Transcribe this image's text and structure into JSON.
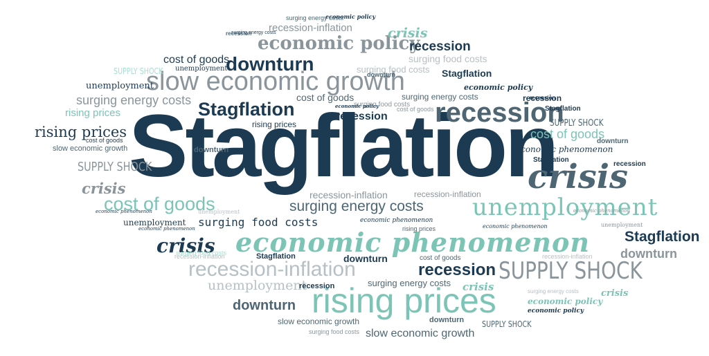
{
  "colors": {
    "navy": "#1c3a52",
    "slate": "#4e6673",
    "gray": "#8a959b",
    "teal": "#7cc4b6",
    "lightteal": "#a9dcd1",
    "lightgray": "#b7c0c4",
    "background": "#ffffff"
  },
  "words": [
    {
      "text": "Stagflation"
    },
    {
      "text": "slow economic growth"
    },
    {
      "text": "recession"
    },
    {
      "text": "crisis"
    },
    {
      "text": "unemployment"
    },
    {
      "text": "economic phenomenon"
    },
    {
      "text": "rising prices"
    },
    {
      "text": "SUPPLY SHOCK"
    },
    {
      "text": "recession-inflation"
    },
    {
      "text": "cost of goods"
    },
    {
      "text": "surging energy costs"
    },
    {
      "text": "surging food costs"
    },
    {
      "text": "downturn"
    },
    {
      "text": "economic policy"
    },
    {
      "text": "Stagflation"
    },
    {
      "text": "Stagflation"
    },
    {
      "text": "rising prices"
    },
    {
      "text": "crisis"
    },
    {
      "text": "downturn"
    },
    {
      "text": "recession"
    },
    {
      "text": "cost of goods"
    },
    {
      "text": "recession"
    },
    {
      "text": "downturn"
    },
    {
      "text": "recession-inflation"
    },
    {
      "text": "crisis"
    },
    {
      "text": "recession"
    },
    {
      "text": "crisis"
    },
    {
      "text": "surging food costs"
    },
    {
      "text": "surging energy costs"
    },
    {
      "text": "recession-inflation"
    },
    {
      "text": "economic policy"
    },
    {
      "text": "unemployment"
    },
    {
      "text": "cost of goods"
    },
    {
      "text": "SUPPLY SHOCK"
    },
    {
      "text": "rising prices"
    },
    {
      "text": "surging energy costs"
    },
    {
      "text": "rising prices"
    },
    {
      "text": "economic phenomenon"
    },
    {
      "text": "SUPPLY SHOCK"
    },
    {
      "text": "slow economic growth"
    },
    {
      "text": "cost of goods"
    },
    {
      "text": "unemployment"
    },
    {
      "text": "surging energy costs"
    },
    {
      "text": "surging food costs"
    },
    {
      "text": "SUPPLY SHOCK"
    },
    {
      "text": "Stagflation"
    },
    {
      "text": "recession"
    },
    {
      "text": "economic policy"
    },
    {
      "text": "Stagflation"
    },
    {
      "text": "recession"
    },
    {
      "text": "downturn"
    },
    {
      "text": "recession-inflation"
    },
    {
      "text": "recession-inflation"
    },
    {
      "text": "economic phenomenon"
    },
    {
      "text": "rising prices"
    },
    {
      "text": "economic phenomenon"
    },
    {
      "text": "economic phenomenon"
    },
    {
      "text": "unemployment"
    },
    {
      "text": "economic phenomenon"
    },
    {
      "text": "Stagflation"
    },
    {
      "text": "downturn"
    },
    {
      "text": "recession-inflation"
    },
    {
      "text": "cost of goods"
    },
    {
      "text": "downturn"
    },
    {
      "text": "surging food costs"
    },
    {
      "text": "recession"
    },
    {
      "text": "surging energy costs"
    },
    {
      "text": "crisis"
    },
    {
      "text": "economic policy"
    },
    {
      "text": "slow economic growth"
    },
    {
      "text": "downturn"
    },
    {
      "text": "SUPPLY SHOCK"
    },
    {
      "text": "slow economic growth"
    },
    {
      "text": "surging energy costs"
    },
    {
      "text": "economic policy"
    },
    {
      "text": "surging food costs"
    },
    {
      "text": "economic phenomenon"
    },
    {
      "text": "cost of goods"
    },
    {
      "text": "Stagflation"
    },
    {
      "text": "surging food costs"
    },
    {
      "text": "economic policy"
    },
    {
      "text": "unemployment"
    },
    {
      "text": "recession"
    },
    {
      "text": "unemployment"
    },
    {
      "text": "downturn"
    },
    {
      "text": "recession"
    },
    {
      "text": "surging energy costs"
    },
    {
      "text": "crisis"
    },
    {
      "text": "unemployment"
    },
    {
      "text": "cost of goods"
    }
  ]
}
